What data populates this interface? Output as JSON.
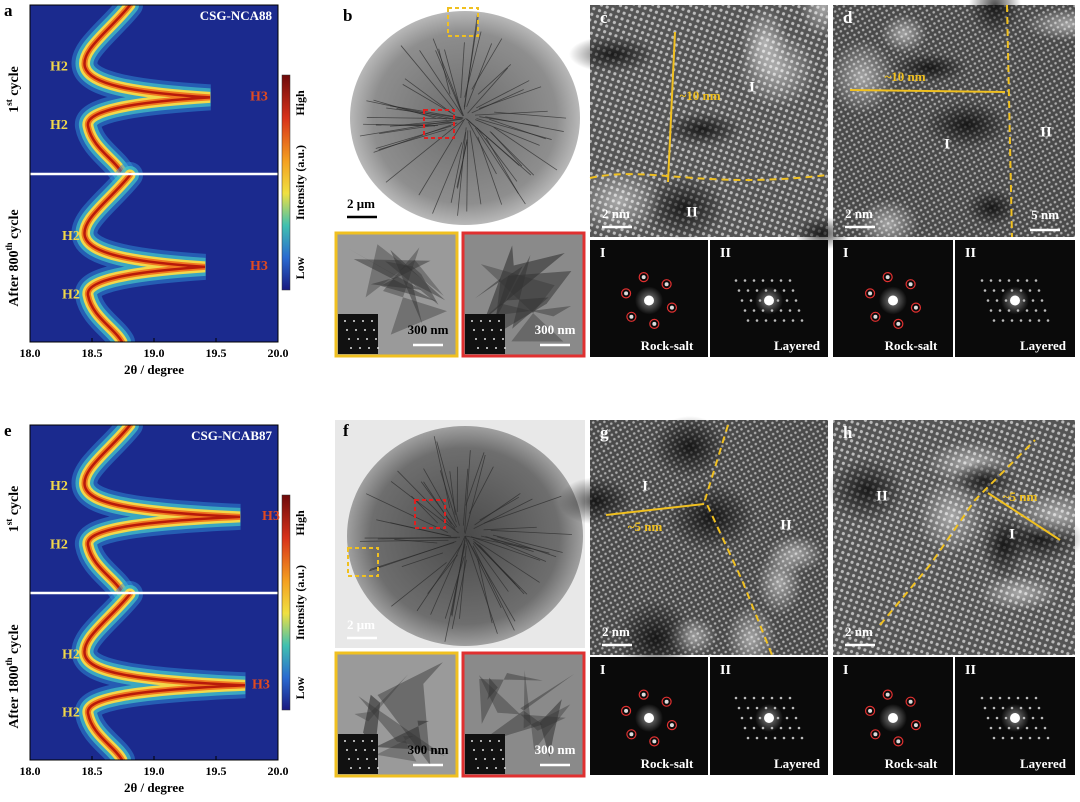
{
  "a": {
    "label": "a",
    "sample": "CSG-NCA88",
    "cycle_top": [
      "1",
      "st",
      " cycle"
    ],
    "cycle_bottom": [
      "After 800",
      "th",
      " cycle"
    ],
    "phases_top": [
      "H2",
      "H3",
      "H2"
    ],
    "phases_bottom": [
      "H2",
      "H3",
      "H2"
    ],
    "xticks": [
      "18.0",
      "18.5",
      "19.0",
      "19.5",
      "20.0"
    ],
    "xlabel": "2θ / degree"
  },
  "colorbar": {
    "high": "High",
    "title": "Intensity (a.u.)",
    "low": "Low"
  },
  "b": {
    "label": "b",
    "scale": "2 μm",
    "insets": [
      "300 nm",
      "300 nm"
    ]
  },
  "c": {
    "label": "c",
    "distance": "~10 nm",
    "regions": [
      "I",
      "II"
    ],
    "scales": [
      "2 nm"
    ],
    "fft": [
      {
        "label": "I",
        "name": "Rock-salt"
      },
      {
        "label": "II",
        "name": "Layered"
      }
    ]
  },
  "d": {
    "label": "d",
    "distance": "~10 nm",
    "regions": [
      "I",
      "II"
    ],
    "scales": [
      "2 nm",
      "5 nm"
    ],
    "fft": [
      {
        "label": "I",
        "name": "Rock-salt"
      },
      {
        "label": "II",
        "name": "Layered"
      }
    ]
  },
  "e": {
    "label": "e",
    "sample": "CSG-NCAB87",
    "cycle_top": [
      "1",
      "st",
      " cycle"
    ],
    "cycle_bottom": [
      "After 1800",
      "th",
      " cycle"
    ],
    "phases_top": [
      "H2",
      "H3",
      "H2"
    ],
    "phases_bottom": [
      "H2",
      "H3",
      "H2"
    ],
    "xticks": [
      "18.0",
      "18.5",
      "19.0",
      "19.5",
      "20.0"
    ],
    "xlabel": "2θ / degree"
  },
  "f": {
    "label": "f",
    "scale": "2 μm",
    "insets": [
      "300 nm",
      "300 nm"
    ]
  },
  "g": {
    "label": "g",
    "distance": "~5 nm",
    "regions": [
      "I",
      "II"
    ],
    "scales": [
      "2 nm"
    ],
    "fft": [
      {
        "label": "I",
        "name": "Rock-salt"
      },
      {
        "label": "II",
        "name": "Layered"
      }
    ]
  },
  "h": {
    "label": "h",
    "distance": "~5 nm",
    "regions": [
      "I",
      "II"
    ],
    "scales": [
      "2 nm"
    ],
    "fft": [
      {
        "label": "I",
        "name": "Rock-salt"
      },
      {
        "label": "II",
        "name": "Layered"
      }
    ]
  }
}
